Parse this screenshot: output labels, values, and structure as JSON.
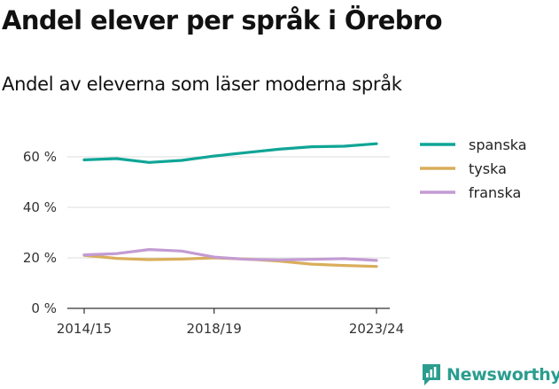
{
  "chart_data": {
    "type": "line",
    "title": "Andel elever per språk i Örebro",
    "subtitle": "Andel av eleverna som läser moderna språk",
    "x": [
      "2014/15",
      "2015/16",
      "2016/17",
      "2017/18",
      "2018/19",
      "2019/20",
      "2020/21",
      "2021/22",
      "2022/23",
      "2023/24"
    ],
    "x_tick_labels": [
      "2014/15",
      "2018/19",
      "2023/24"
    ],
    "y_tick_labels": [
      "0 %",
      "20 %",
      "40 %",
      "60 %"
    ],
    "y_ticks": [
      0,
      20,
      40,
      60
    ],
    "ylim": [
      0,
      60
    ],
    "grid": true,
    "legend_position": "right",
    "series": [
      {
        "name": "spanska",
        "color": "#0fa596",
        "values": [
          58.8,
          59.3,
          57.8,
          58.6,
          60.3,
          61.7,
          63.0,
          64.0,
          64.2,
          65.2
        ]
      },
      {
        "name": "tyska",
        "color": "#d9ae5b",
        "values": [
          21.0,
          19.8,
          19.3,
          19.5,
          20.0,
          19.5,
          18.7,
          17.5,
          17.0,
          16.6
        ]
      },
      {
        "name": "franska",
        "color": "#c39bd3",
        "values": [
          21.2,
          21.7,
          23.3,
          22.7,
          20.3,
          19.4,
          19.2,
          19.4,
          19.7,
          19.0
        ]
      }
    ]
  },
  "logo": {
    "text": "Newsworthy",
    "icon": "newsworthy-logo-icon"
  }
}
